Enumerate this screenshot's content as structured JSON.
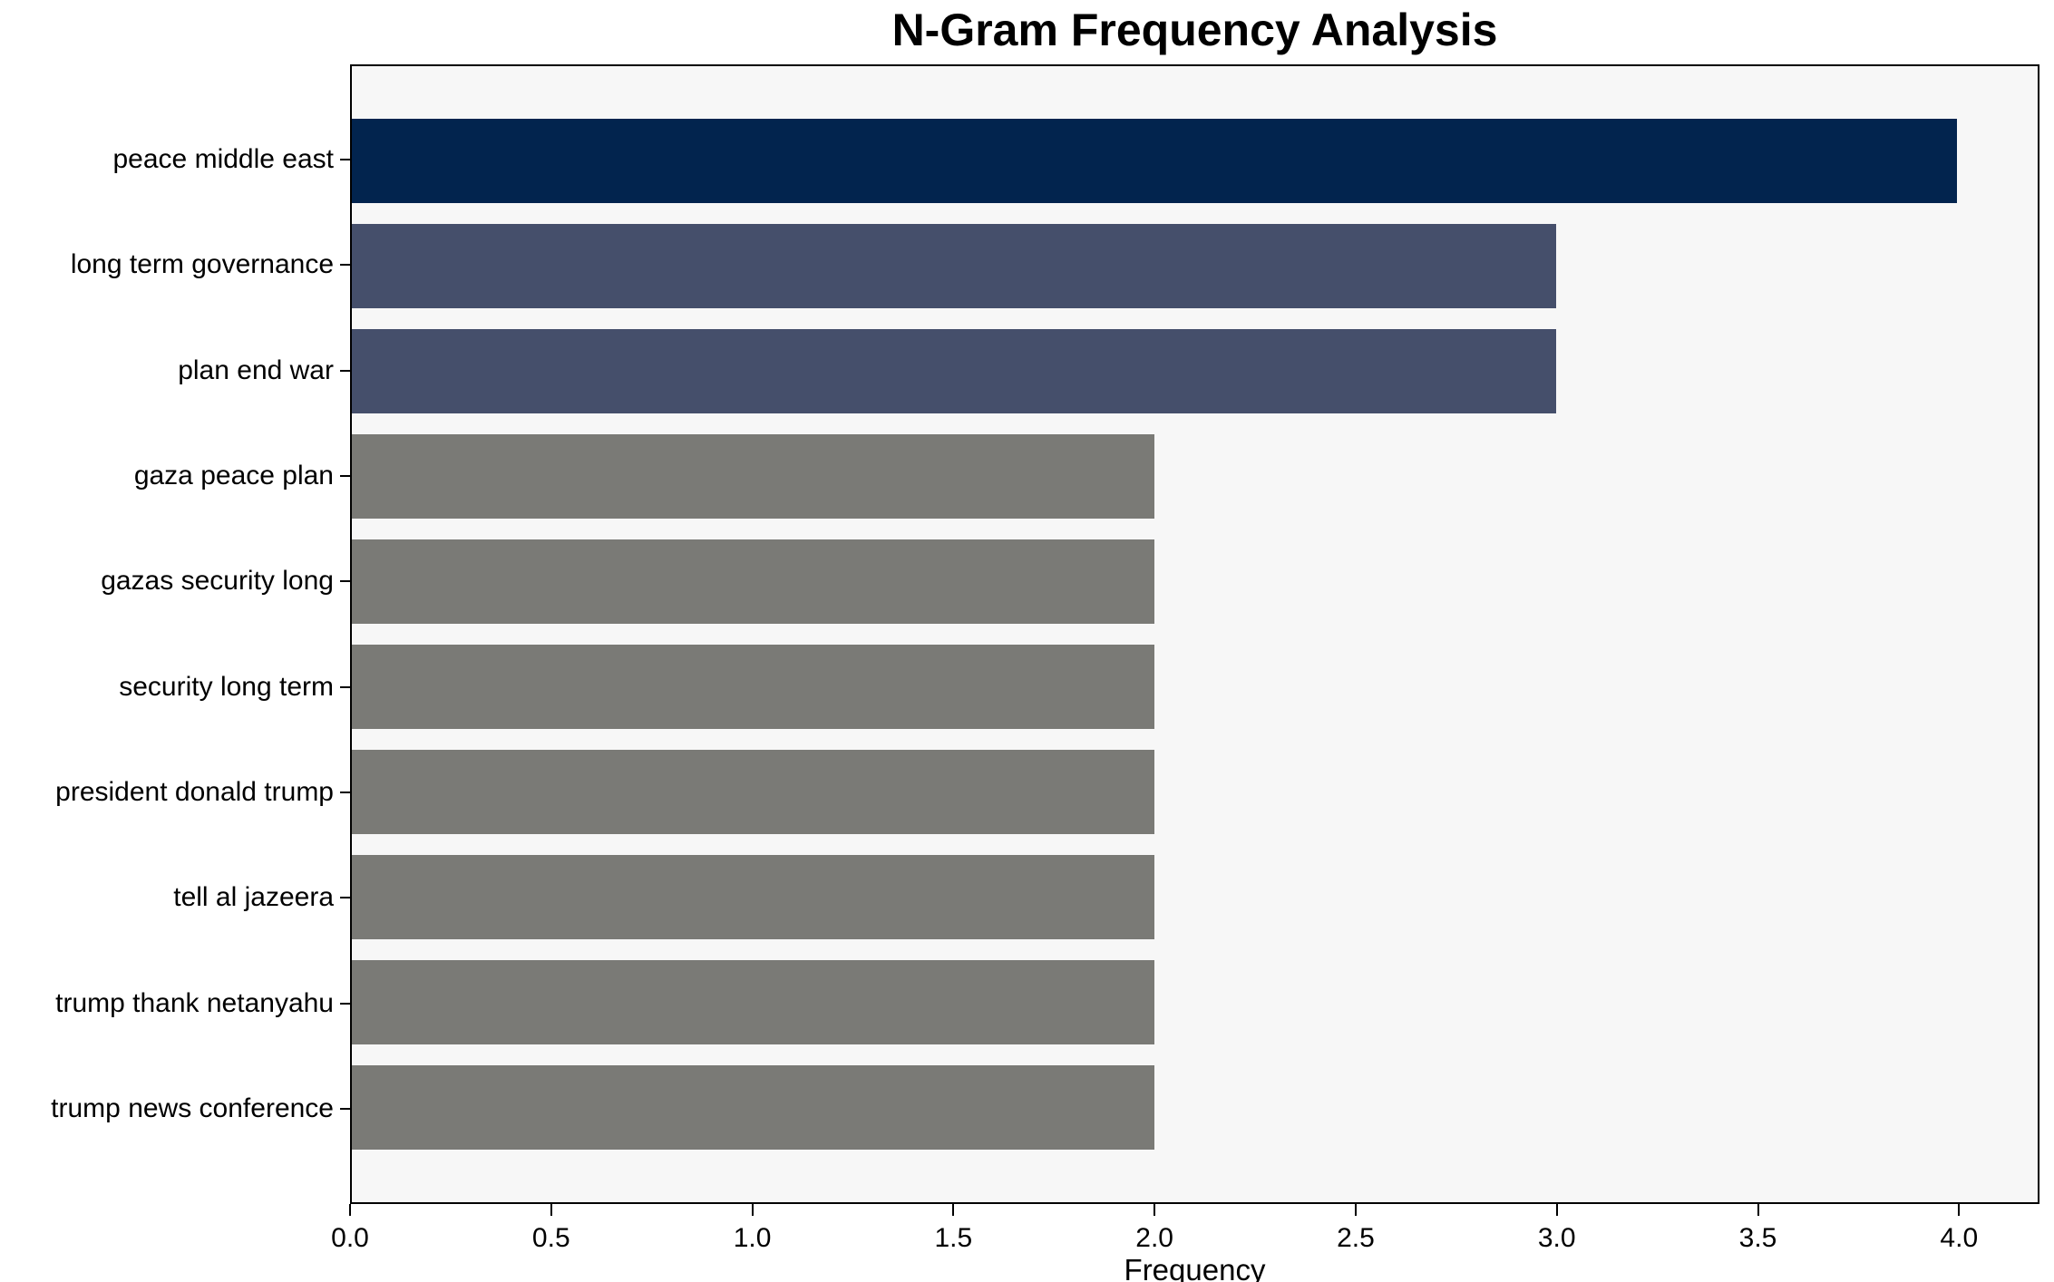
{
  "chart_data": {
    "type": "bar",
    "orientation": "horizontal",
    "title": "N-Gram Frequency Analysis",
    "xlabel": "Frequency",
    "ylabel": "",
    "categories": [
      "peace middle east",
      "long term governance",
      "plan end war",
      "gaza peace plan",
      "gazas security long",
      "security long term",
      "president donald trump",
      "tell al jazeera",
      "trump thank netanyahu",
      "trump news conference"
    ],
    "values": [
      4,
      3,
      3,
      2,
      2,
      2,
      2,
      2,
      2,
      2
    ],
    "bar_colors": [
      "#02244e",
      "#454f6b",
      "#454f6b",
      "#7a7a76",
      "#7a7a76",
      "#7a7a76",
      "#7a7a76",
      "#7a7a76",
      "#7a7a76",
      "#7a7a76"
    ],
    "xlim": [
      0,
      4.2
    ],
    "xtick_labels": [
      "0.0",
      "0.5",
      "1.0",
      "1.5",
      "2.0",
      "2.5",
      "3.0",
      "3.5",
      "4.0"
    ],
    "xtick_values": [
      0,
      0.5,
      1,
      1.5,
      2,
      2.5,
      3,
      3.5,
      4
    ],
    "grid": false,
    "legend": "none",
    "plot_background": "#f7f7f7",
    "figure_background": "#ffffff",
    "spine_color": "#000000"
  }
}
